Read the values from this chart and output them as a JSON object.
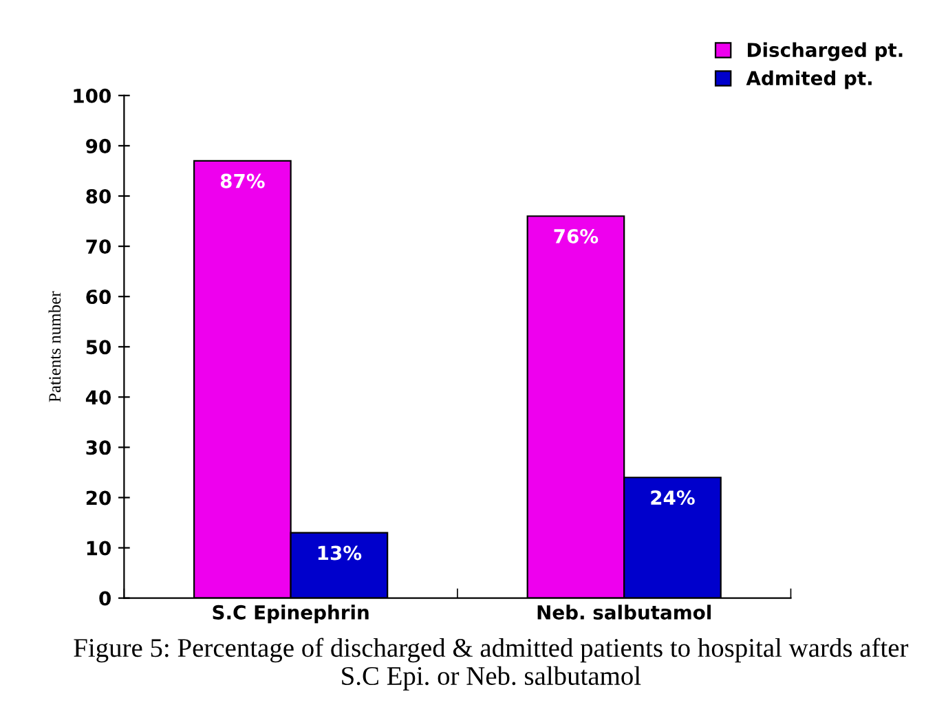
{
  "chart_data": {
    "type": "bar",
    "ylabel": "Patients number",
    "categories": [
      "S.C Epinephrin",
      "Neb. salbutamol"
    ],
    "series": [
      {
        "name": "Discharged pt.",
        "color": "#ee00ee",
        "values": [
          87,
          76
        ],
        "value_labels": [
          "87%",
          "76%"
        ]
      },
      {
        "name": "Admited pt.",
        "color": "#0000cc",
        "values": [
          13,
          24
        ],
        "value_labels": [
          "13%",
          "24%"
        ]
      }
    ],
    "ylim": [
      0,
      100
    ],
    "yticks": [
      0,
      10,
      20,
      30,
      40,
      50,
      60,
      70,
      80,
      90,
      100
    ],
    "grid": false,
    "legend": "top right",
    "annotations": [
      "Figure 5: Percentage of discharged & admitted patients to hospital wards after S.C Epi. or Neb. salbutamol"
    ]
  }
}
